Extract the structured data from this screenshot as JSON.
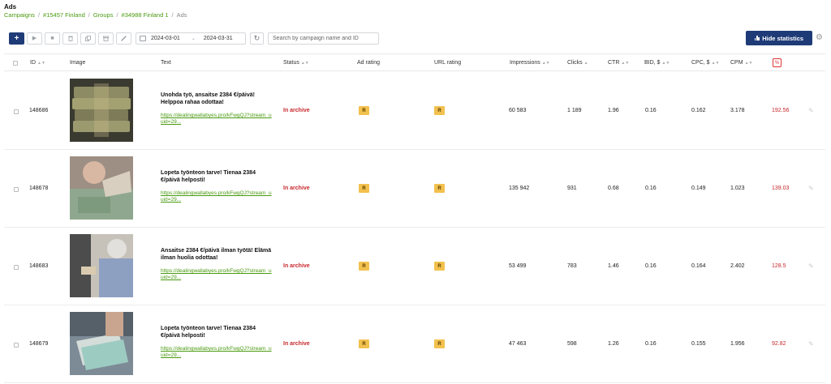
{
  "page": {
    "title": "Ads"
  },
  "breadcrumb": {
    "campaigns": "Campaigns",
    "campaign": "#15457 Finland",
    "groups": "Groups",
    "group": "#34988 Finland 1",
    "current": "Ads"
  },
  "toolbar": {
    "add_label": "+",
    "date_from": "2024-03-01",
    "date_to": "2024-03-31",
    "search_placeholder": "Search by campaign name and ID",
    "hide_stats_label": "Hide statistics"
  },
  "columns": {
    "id": "ID",
    "image": "Image",
    "text": "Text",
    "status": "Status",
    "ad_rating": "Ad rating",
    "url_rating": "URL rating",
    "impressions": "Impressions",
    "clicks": "Clicks",
    "ctr": "CTR",
    "bid": "BID, $",
    "cpc": "CPC, $",
    "cpm": "CPM"
  },
  "rows": [
    {
      "id": "148686",
      "text": "Unohda työ, ansaitse 2384 €/päivä! Helppoa rahaa odottaa!",
      "link": "https://dealingwallabyes.pro/kFwgQJ?stream_uuid=29...",
      "status": "In archive",
      "ad_rating": "R",
      "url_rating": "R",
      "impressions": "60 583",
      "clicks": "1 189",
      "ctr": "1.96",
      "bid": "0.16",
      "cpc": "0.162",
      "cpm": "3.178",
      "roi": "192.56"
    },
    {
      "id": "148678",
      "text": "Lopeta työnteon tarve! Tienaa 2384 €/päivä helposti!",
      "link": "https://dealingwallabyes.pro/kFwgQJ?stream_uuid=29...",
      "status": "In archive",
      "ad_rating": "R",
      "url_rating": "R",
      "impressions": "135 942",
      "clicks": "931",
      "ctr": "0.68",
      "bid": "0.16",
      "cpc": "0.149",
      "cpm": "1.023",
      "roi": "139.03"
    },
    {
      "id": "148683",
      "text": "Ansaitse 2384 €/päivä ilman työtä! Elämä ilman huolia odottaa!",
      "link": "https://dealingwallabyes.pro/kFwgQJ?stream_uuid=29...",
      "status": "In archive",
      "ad_rating": "R",
      "url_rating": "R",
      "impressions": "53 499",
      "clicks": "783",
      "ctr": "1.46",
      "bid": "0.16",
      "cpc": "0.164",
      "cpm": "2.402",
      "roi": "128.5"
    },
    {
      "id": "148679",
      "text": "Lopeta työnteon tarve! Tienaa 2384 €/päivä helposti!",
      "link": "https://dealingwallabyes.pro/kFwgQJ?stream_uuid=29...",
      "status": "In archive",
      "ad_rating": "R",
      "url_rating": "R",
      "impressions": "47 463",
      "clicks": "598",
      "ctr": "1.26",
      "bid": "0.16",
      "cpc": "0.155",
      "cpm": "1.956",
      "roi": "92.82"
    }
  ]
}
